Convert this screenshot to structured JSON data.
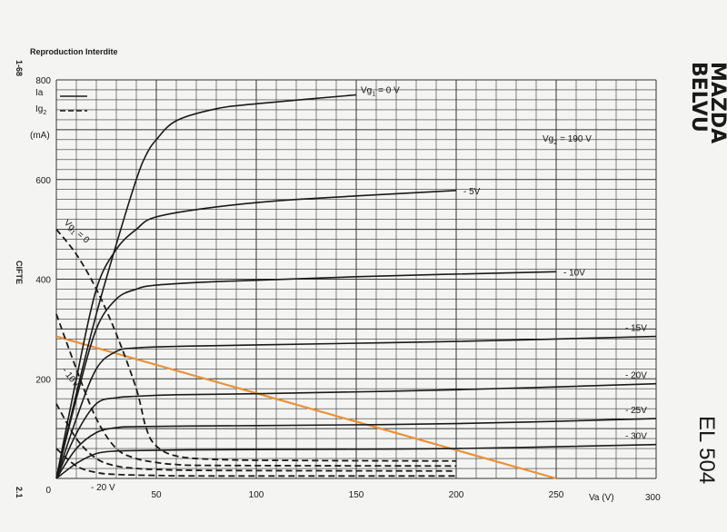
{
  "header": {
    "notice": "Reproduction Interdite",
    "sheet_code": "1-68",
    "category": "CIFTE",
    "page_code": "2.1"
  },
  "brand": {
    "line1": "MAZDA",
    "line2": "BELVU",
    "tube": "EL 504"
  },
  "legend": {
    "ia_label": "Ia",
    "ig2_label": "Ig",
    "ig2_sub": "2",
    "unit": "(mA)"
  },
  "conditions": {
    "vg2": "Vg",
    "vg2_sub": "2",
    "vg2_value": "= 190 V"
  },
  "chart_data": {
    "type": "line",
    "xlabel": "Va (V)",
    "ylabel": "(mA)",
    "xlim": [
      0,
      300
    ],
    "ylim": [
      0,
      800
    ],
    "x_ticks": [
      {
        "value": 50,
        "label": "50"
      },
      {
        "value": 100,
        "label": "100"
      },
      {
        "value": 150,
        "label": "150"
      },
      {
        "value": 200,
        "label": "200"
      },
      {
        "value": 250,
        "label": "250"
      },
      {
        "value": 300,
        "label": "300"
      }
    ],
    "y_ticks": [
      {
        "value": 0,
        "label": "0"
      },
      {
        "value": 200,
        "label": "200"
      },
      {
        "value": 400,
        "label": "400"
      },
      {
        "value": 600,
        "label": "600"
      },
      {
        "value": 800,
        "label": "800"
      }
    ],
    "grid": true,
    "anode_series": [
      {
        "label": "Vg",
        "sub": "1",
        "suffix": "= 0 V",
        "x": [
          0,
          10,
          20,
          30,
          40,
          45,
          50,
          60,
          80,
          100,
          150
        ],
        "y": [
          0,
          170,
          330,
          470,
          600,
          650,
          680,
          718,
          742,
          752,
          770
        ]
      },
      {
        "label": "- 5V",
        "x": [
          0,
          10,
          20,
          30,
          40,
          50,
          80,
          120,
          200
        ],
        "y": [
          0,
          200,
          380,
          460,
          500,
          525,
          545,
          560,
          578
        ]
      },
      {
        "label": "- 10V",
        "x": [
          0,
          10,
          20,
          30,
          40,
          50,
          80,
          150,
          250
        ],
        "y": [
          0,
          160,
          300,
          360,
          380,
          388,
          395,
          405,
          415
        ]
      },
      {
        "label": "- 15V",
        "x": [
          0,
          10,
          20,
          30,
          40,
          60,
          100,
          200,
          300
        ],
        "y": [
          0,
          120,
          220,
          255,
          262,
          265,
          268,
          275,
          285
        ]
      },
      {
        "label": "- 20V",
        "x": [
          0,
          10,
          20,
          30,
          40,
          60,
          100,
          200,
          300
        ],
        "y": [
          0,
          90,
          150,
          162,
          165,
          168,
          170,
          178,
          190
        ]
      },
      {
        "label": "- 25V",
        "x": [
          0,
          10,
          20,
          30,
          40,
          60,
          100,
          200,
          300
        ],
        "y": [
          0,
          60,
          92,
          102,
          104,
          105,
          106,
          110,
          120
        ]
      },
      {
        "label": "- 30V",
        "x": [
          0,
          10,
          20,
          30,
          40,
          60,
          100,
          200,
          300
        ],
        "y": [
          0,
          30,
          50,
          55,
          56,
          57,
          58,
          60,
          68
        ]
      }
    ],
    "screen_series": [
      {
        "label": "Vg",
        "sub": "1",
        "suffix": "= 0",
        "x": [
          0,
          10,
          20,
          30,
          40,
          45,
          50,
          60,
          80,
          120,
          200
        ],
        "y": [
          500,
          450,
          380,
          290,
          180,
          100,
          65,
          45,
          38,
          36,
          35
        ]
      },
      {
        "label": "- 10V",
        "x": [
          0,
          10,
          20,
          30,
          40,
          50,
          60,
          80,
          200
        ],
        "y": [
          330,
          220,
          120,
          60,
          40,
          32,
          28,
          26,
          25
        ]
      },
      {
        "label": "",
        "x": [
          0,
          10,
          20,
          30,
          40,
          50,
          80,
          200
        ],
        "y": [
          150,
          80,
          40,
          25,
          20,
          18,
          16,
          15
        ]
      },
      {
        "label": "- 20 V",
        "x": [
          0,
          10,
          20,
          30,
          50,
          80,
          200
        ],
        "y": [
          60,
          25,
          12,
          8,
          6,
          5,
          5
        ]
      }
    ],
    "load_line": {
      "color": "#e8923a",
      "x": [
        0,
        250
      ],
      "y": [
        285,
        0
      ]
    }
  }
}
